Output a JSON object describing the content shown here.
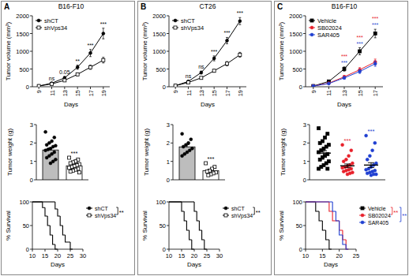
{
  "chart_data": [
    {
      "type": "line",
      "panel": "A",
      "title": "B16-F10",
      "x_label": "Days",
      "y_label": "Tumor volume (mm³)",
      "x": [
        9,
        11,
        13,
        15,
        17,
        19
      ],
      "xlim": [
        8,
        20
      ],
      "xticks": [
        9,
        11,
        13,
        15,
        17,
        19
      ],
      "ylim": [
        0,
        2000
      ],
      "yticks": [
        0,
        500,
        1000,
        1500,
        2000
      ],
      "legend": "upper left",
      "series": [
        {
          "name": "shCT",
          "color": "#000000",
          "marker": "circle",
          "values": [
            20,
            100,
            250,
            550,
            950,
            1500
          ],
          "errors": [
            5,
            15,
            40,
            60,
            100,
            150
          ]
        },
        {
          "name": "shVps34",
          "color": "#000000",
          "marker": "open-square",
          "values": [
            20,
            80,
            180,
            350,
            550,
            750
          ],
          "errors": [
            5,
            10,
            25,
            40,
            60,
            80
          ],
          "annotations": [
            null,
            "ns",
            "0.05",
            "**",
            "***",
            "***"
          ]
        }
      ]
    },
    {
      "type": "bar",
      "y_label": "Tumor weight (g)",
      "categories": [
        null,
        null
      ],
      "values": [
        1.62,
        0.76
      ],
      "errors": [
        0.11,
        0.06
      ],
      "colors": [
        "#bdbdbd",
        "#ffffff"
      ],
      "ylim": [
        0,
        3
      ],
      "yticks": [
        0,
        1,
        2,
        3
      ],
      "points": [
        [
          2.6,
          2.3,
          2.1,
          2.0,
          1.9,
          1.85,
          1.8,
          1.7,
          1.65,
          1.6,
          1.5,
          1.4,
          1.3,
          1.2,
          1.1,
          1.0,
          0.9
        ],
        [
          1.2,
          1.1,
          1.0,
          0.95,
          0.9,
          0.85,
          0.8,
          0.75,
          0.7,
          0.65,
          0.6,
          0.55,
          0.5,
          0.45,
          0.4
        ]
      ],
      "annotations": [
        null,
        "***"
      ]
    },
    {
      "type": "step",
      "x_label": "Days",
      "y_label": "% Survival",
      "xlim": [
        10,
        30
      ],
      "xticks": [
        10,
        15,
        20,
        25,
        30
      ],
      "ylim": [
        0,
        100
      ],
      "yticks": [
        0,
        50,
        100
      ],
      "legend": "right",
      "series": [
        {
          "name": "shCT",
          "color": "#000000",
          "marker": "circle",
          "x": [
            10,
            14,
            15,
            16,
            17,
            18,
            19
          ],
          "values": [
            100,
            88,
            70,
            50,
            30,
            10,
            0
          ]
        },
        {
          "name": "shVps34",
          "color": "#000000",
          "marker": "open-square",
          "x": [
            10,
            19,
            20,
            21,
            22,
            23,
            25
          ],
          "values": [
            100,
            85,
            70,
            50,
            30,
            15,
            0
          ]
        }
      ],
      "annotations": [
        {
          "text": "**",
          "color": "#000000"
        }
      ]
    },
    {
      "type": "line",
      "panel": "B",
      "title": "CT26",
      "x_label": "Days",
      "y_label": "Tumor volume (mm³)",
      "x": [
        9,
        11,
        13,
        15,
        17,
        19
      ],
      "xlim": [
        8,
        20
      ],
      "xticks": [
        9,
        11,
        13,
        15,
        17,
        19
      ],
      "ylim": [
        0,
        2000
      ],
      "yticks": [
        0,
        500,
        1000,
        1500,
        2000
      ],
      "legend": "upper left",
      "series": [
        {
          "name": "shCT",
          "color": "#000000",
          "marker": "circle",
          "values": [
            30,
            150,
            400,
            800,
            1300,
            1850
          ],
          "errors": [
            5,
            20,
            40,
            70,
            90,
            100
          ]
        },
        {
          "name": "shVps34",
          "color": "#000000",
          "marker": "open-square",
          "values": [
            30,
            120,
            250,
            450,
            650,
            900
          ],
          "errors": [
            5,
            15,
            30,
            40,
            60,
            70
          ],
          "annotations": [
            null,
            "ns",
            "ns",
            "***",
            "***",
            "***"
          ]
        }
      ]
    },
    {
      "type": "bar",
      "y_label": "Tumor weight (g)",
      "categories": [
        null,
        null
      ],
      "values": [
        1.79,
        0.49
      ],
      "errors": [
        0.12,
        0.07
      ],
      "colors": [
        "#bdbdbd",
        "#ffffff"
      ],
      "ylim": [
        0,
        3
      ],
      "yticks": [
        0,
        1,
        2,
        3
      ],
      "points": [
        [
          2.5,
          2.2,
          2.0,
          1.9,
          1.8,
          1.7,
          1.6,
          1.5,
          1.4,
          1.3
        ],
        [
          0.9,
          0.7,
          0.6,
          0.5,
          0.45,
          0.4,
          0.35,
          0.3,
          0.25
        ]
      ],
      "annotations": [
        null,
        "***"
      ]
    },
    {
      "type": "step",
      "x_label": "Days",
      "y_label": "% Survival",
      "xlim": [
        10,
        30
      ],
      "xticks": [
        10,
        15,
        20,
        25,
        30
      ],
      "ylim": [
        0,
        100
      ],
      "yticks": [
        0,
        50,
        100
      ],
      "legend": "right",
      "series": [
        {
          "name": "shCT",
          "color": "#000000",
          "marker": "circle",
          "x": [
            10,
            15,
            16,
            17,
            18,
            19
          ],
          "values": [
            100,
            80,
            60,
            40,
            20,
            0
          ]
        },
        {
          "name": "shVps34",
          "color": "#000000",
          "marker": "open-square",
          "x": [
            10,
            20,
            21,
            22,
            23,
            24
          ],
          "values": [
            100,
            80,
            60,
            40,
            20,
            0
          ]
        }
      ],
      "annotations": [
        {
          "text": "**",
          "color": "#000000"
        }
      ]
    },
    {
      "type": "line",
      "panel": "C",
      "title": "B16-F10",
      "x_label": "Days",
      "y_label": "Tumor volume (mm³)",
      "x": [
        9,
        11,
        13,
        15,
        17
      ],
      "xlim": [
        8,
        18
      ],
      "xticks": [
        9,
        11,
        13,
        15,
        17
      ],
      "ylim": [
        0,
        2000
      ],
      "yticks": [
        0,
        500,
        1000,
        1500,
        2000
      ],
      "legend": "upper left",
      "series": [
        {
          "name": "Vehicle",
          "color": "#000000",
          "marker": "square",
          "values": [
            20,
            150,
            500,
            1000,
            1500
          ],
          "errors": [
            5,
            20,
            60,
            100,
            120
          ]
        },
        {
          "name": "SB02024",
          "color": "#e8202a",
          "marker": "circle",
          "values": [
            20,
            100,
            280,
            480,
            700
          ],
          "errors": [
            5,
            15,
            40,
            60,
            80
          ],
          "annotations": [
            null,
            null,
            "***",
            "***",
            "***"
          ]
        },
        {
          "name": "SAR405",
          "color": "#1f3fd1",
          "marker": "circle",
          "values": [
            20,
            90,
            250,
            430,
            650
          ],
          "errors": [
            5,
            15,
            35,
            55,
            75
          ],
          "annotations": [
            null,
            null,
            "***",
            "***",
            "***"
          ]
        }
      ]
    },
    {
      "type": "dot",
      "y_label": "Tumor weight (g)",
      "categories": [
        null,
        null,
        null
      ],
      "values": [
        1.45,
        0.76,
        0.8
      ],
      "errors": [
        0.13,
        0.1,
        0.13
      ],
      "colors": [
        "#000000",
        "#e8202a",
        "#1f3fd1"
      ],
      "ylim": [
        0,
        3
      ],
      "yticks": [
        0,
        1,
        2,
        3
      ],
      "points": [
        [
          2.8,
          2.5,
          2.3,
          2.1,
          2.0,
          1.9,
          1.8,
          1.7,
          1.6,
          1.5,
          1.4,
          1.3,
          1.2,
          1.1,
          1.0,
          0.9,
          0.8,
          0.7,
          0.6,
          0.6
        ],
        [
          1.9,
          1.6,
          1.3,
          1.1,
          1.0,
          0.9,
          0.8,
          0.75,
          0.7,
          0.65,
          0.6,
          0.55,
          0.5,
          0.45,
          0.4,
          0.35,
          0.3
        ],
        [
          2.4,
          2.0,
          1.6,
          1.3,
          1.1,
          0.9,
          0.8,
          0.7,
          0.6,
          0.55,
          0.5,
          0.45,
          0.4,
          0.35,
          0.3,
          0.3,
          0.25
        ]
      ],
      "annotations": [
        null,
        "***",
        "***"
      ]
    },
    {
      "type": "step",
      "x_label": "Days",
      "y_label": "% Survival",
      "xlim": [
        10,
        25
      ],
      "xticks": [
        10,
        15,
        20,
        25
      ],
      "ylim": [
        0,
        100
      ],
      "yticks": [
        0,
        50,
        100
      ],
      "legend": "right",
      "series": [
        {
          "name": "Vehicle",
          "color": "#000000",
          "marker": "square",
          "x": [
            10,
            13,
            14,
            15,
            16,
            17
          ],
          "values": [
            100,
            80,
            60,
            40,
            20,
            0
          ]
        },
        {
          "name": "SB02024",
          "color": "#e8202a",
          "marker": "circle",
          "x": [
            10,
            17,
            18,
            20,
            21,
            22
          ],
          "values": [
            100,
            80,
            60,
            40,
            20,
            0
          ]
        },
        {
          "name": "SAR405",
          "color": "#1f3fd1",
          "marker": "circle",
          "x": [
            10,
            18,
            19,
            20,
            21,
            22
          ],
          "values": [
            100,
            80,
            60,
            30,
            10,
            0
          ]
        }
      ],
      "annotations": [
        {
          "text": "**",
          "color": "#e8202a"
        },
        {
          "text": "**",
          "color": "#1f3fd1"
        }
      ]
    }
  ]
}
